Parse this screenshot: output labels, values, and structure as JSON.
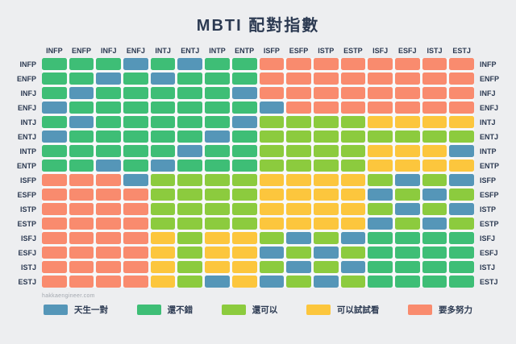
{
  "title": "MBTI 配對指數",
  "watermark": "hakkaengineer.com",
  "colors": {
    "background": "#EDEEF0",
    "grid_gap": "#F7F8F9",
    "text": "#2C3A52",
    "watermark_text": "#A3A8AF",
    "blue": "#5596B8",
    "green": "#3EBE76",
    "light_green": "#8CCB3E",
    "yellow": "#FCC63D",
    "salmon": "#F98B6E"
  },
  "legend": {
    "position": "bottom",
    "items": [
      {
        "code": "B",
        "label": "天生一對",
        "color": "#5596B8"
      },
      {
        "code": "G",
        "label": "還不錯",
        "color": "#3EBE76"
      },
      {
        "code": "L",
        "label": "還可以",
        "color": "#8CCB3E"
      },
      {
        "code": "Y",
        "label": "可以試試看",
        "color": "#FCC63D"
      },
      {
        "code": "R",
        "label": "要多努力",
        "color": "#F98B6E"
      }
    ]
  },
  "chart_data": {
    "type": "heatmap",
    "title": "MBTI 配對指數",
    "categories": [
      "INFP",
      "ENFP",
      "INFJ",
      "ENFJ",
      "INTJ",
      "ENTJ",
      "INTP",
      "ENTP",
      "ISFP",
      "ESFP",
      "ISTP",
      "ESTP",
      "ISFJ",
      "ESFJ",
      "ISTJ",
      "ESTJ"
    ],
    "code_labels": {
      "B": "天生一對",
      "G": "還不錯",
      "L": "還可以",
      "Y": "可以試試看",
      "R": "要多努力"
    },
    "matrix": [
      "GGGBGBGGRRRRRRRR",
      "GGBGBGGGRRRRRRRR",
      "GBGGGGGBRRRRRRRR",
      "BGGGGGGGBRRRRRRR",
      "GBGGGGGBLLLLYYYY",
      "BGGGGGBGLLLLLLLL",
      "GGGGGBGGLLLLYYYB",
      "GGBGBGGGLLLLYYYY",
      "RRRBLLLLYYYYLBLB",
      "RRRRLLLLYYYYBLBL",
      "RRRRLLLLYYYYLBLB",
      "RRRRLLLLYYYYBLBL",
      "RRRRYLYYLBLBGGGG",
      "RRRRYLYYBLBLGGGG",
      "RRRRYLYYLBLBGGGG",
      "RRRRYLBYBLBLGGGG"
    ],
    "grid": true,
    "row_labels_sides": "both"
  }
}
